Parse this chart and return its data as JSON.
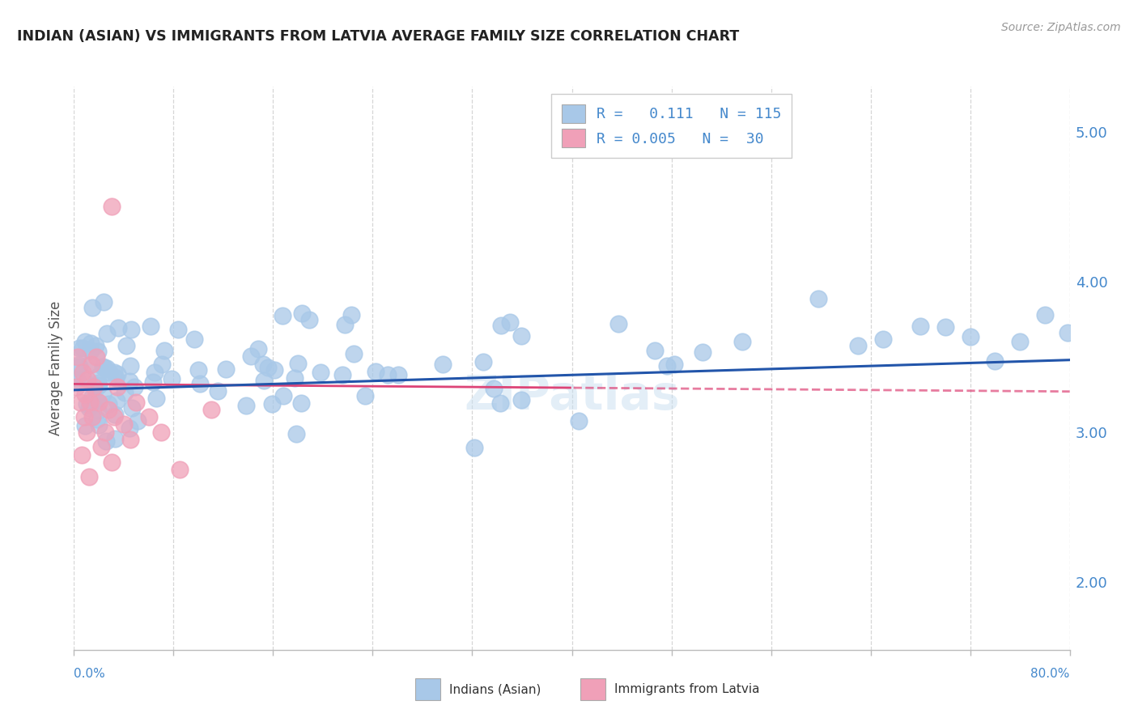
{
  "title": "INDIAN (ASIAN) VS IMMIGRANTS FROM LATVIA AVERAGE FAMILY SIZE CORRELATION CHART",
  "source": "Source: ZipAtlas.com",
  "ylabel": "Average Family Size",
  "blue_color": "#a8c8e8",
  "pink_color": "#f0a0b8",
  "blue_line_color": "#2255aa",
  "pink_line_color": "#dd4477",
  "pink_dash_color": "#dd4477",
  "axis_label_color": "#4488cc",
  "grid_color": "#cccccc",
  "title_color": "#222222",
  "background_color": "#ffffff",
  "xmin": 0.0,
  "xmax": 80.0,
  "ymin": 1.55,
  "ymax": 5.3,
  "yticks": [
    2.0,
    3.0,
    4.0,
    5.0
  ],
  "legend_r1_text": "R =   0.111   N = 115",
  "legend_r2_text": "R = 0.005   N =  30",
  "legend_label1": "Indians (Asian)",
  "legend_label2": "Immigrants from Latvia"
}
